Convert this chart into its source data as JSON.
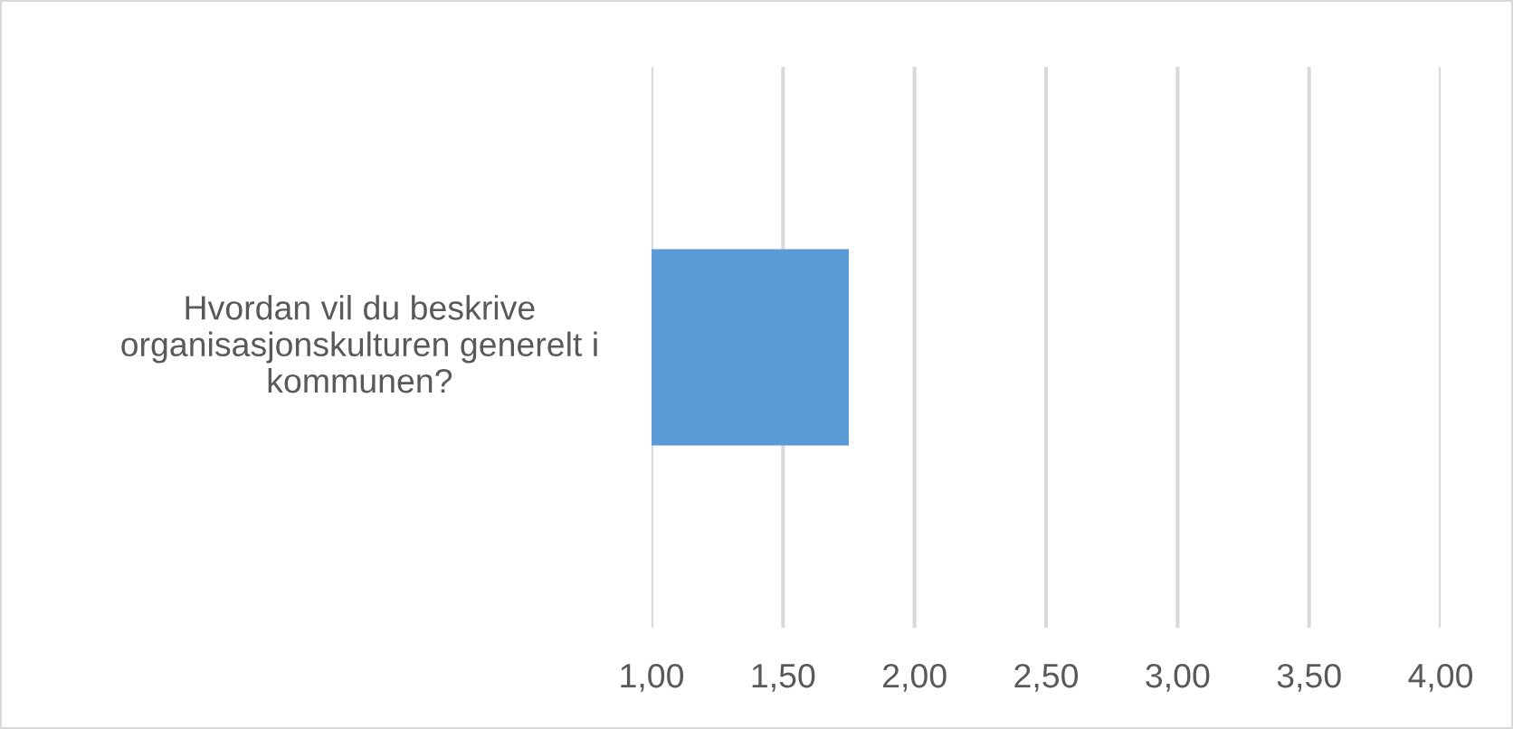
{
  "chart_data": {
    "type": "bar",
    "orientation": "horizontal",
    "categories": [
      "Hvordan vil du beskrive\norganisasjonskulturen generelt i\nkommunen?"
    ],
    "values": [
      1.75
    ],
    "color": "#5b9bd5",
    "xlim": [
      1,
      4
    ],
    "xticks": [
      {
        "value": 1,
        "label": "1,00"
      },
      {
        "value": 1.5,
        "label": "1,50"
      },
      {
        "value": 2,
        "label": "2,00"
      },
      {
        "value": 2.5,
        "label": "2,50"
      },
      {
        "value": 3,
        "label": "3,00"
      },
      {
        "value": 3.5,
        "label": "3,50"
      },
      {
        "value": 4,
        "label": "4,00"
      }
    ],
    "grid": "x"
  }
}
